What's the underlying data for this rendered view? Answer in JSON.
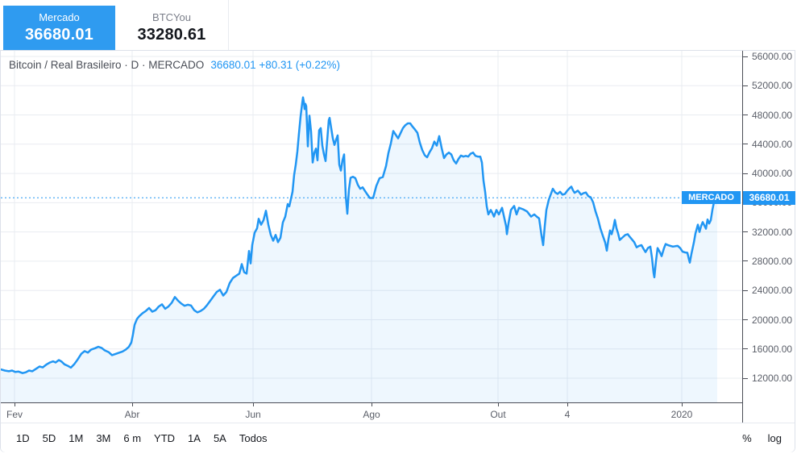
{
  "tabs": [
    {
      "label": "Mercado",
      "value": "36680.01",
      "active": true
    },
    {
      "label": "BTCYou",
      "value": "33280.61",
      "active": false
    }
  ],
  "header": {
    "title": "Bitcoin / Real Brasileiro · D · MERCADO",
    "quote": "36680.01 +80.31 (+0.22%)"
  },
  "price_label": {
    "badge": "MERCADO",
    "value": "36680.01"
  },
  "toolbar": {
    "ranges": [
      "1D",
      "5D",
      "1M",
      "3M",
      "6 m",
      "YTD",
      "1A",
      "5A",
      "Todos"
    ],
    "percent": "%",
    "log": "log"
  },
  "colors": {
    "accent": "#2196f3",
    "tab_active_bg": "#2f9bf0",
    "area_fill": "rgba(33,150,243,0.075)",
    "gridline": "#e9ecf1",
    "axis_line": "#4a4d56",
    "axis_text": "#5a5e68"
  },
  "chart_data": {
    "type": "area",
    "title": "Bitcoin / Real Brasileiro · D · MERCADO",
    "ylim": [
      12000,
      56000
    ],
    "grid": true,
    "current_price": 36680.01,
    "y_ticks": [
      56000,
      52000,
      48000,
      44000,
      40000,
      36000,
      32000,
      28000,
      24000,
      20000,
      16000,
      12000
    ],
    "y_tick_labels": [
      "56000.00",
      "52000.00",
      "48000.00",
      "44000.00",
      "40000.00",
      "36000.00",
      "32000.00",
      "28000.00",
      "24000.00",
      "20000.00",
      "16000.00",
      "12000.00"
    ],
    "x_ticks": [
      {
        "label": "Fev",
        "x": 17
      },
      {
        "label": "Abr",
        "x": 163
      },
      {
        "label": "Jun",
        "x": 313
      },
      {
        "label": "Ago",
        "x": 460
      },
      {
        "label": "Out",
        "x": 617
      },
      {
        "label": "4",
        "x": 703
      },
      {
        "label": "2020",
        "x": 845
      }
    ],
    "points": [
      [
        0,
        13200
      ],
      [
        5,
        13050
      ],
      [
        10,
        12950
      ],
      [
        14,
        13050
      ],
      [
        18,
        12850
      ],
      [
        22,
        12900
      ],
      [
        27,
        12700
      ],
      [
        31,
        12800
      ],
      [
        35,
        13050
      ],
      [
        39,
        12950
      ],
      [
        44,
        13300
      ],
      [
        48,
        13600
      ],
      [
        52,
        13480
      ],
      [
        57,
        13900
      ],
      [
        61,
        14150
      ],
      [
        65,
        14300
      ],
      [
        68,
        14150
      ],
      [
        72,
        14480
      ],
      [
        75,
        14300
      ],
      [
        79,
        13900
      ],
      [
        83,
        13700
      ],
      [
        87,
        13450
      ],
      [
        91,
        13900
      ],
      [
        95,
        14500
      ],
      [
        100,
        15350
      ],
      [
        104,
        15700
      ],
      [
        108,
        15500
      ],
      [
        112,
        15900
      ],
      [
        117,
        16100
      ],
      [
        121,
        16300
      ],
      [
        125,
        16150
      ],
      [
        129,
        15800
      ],
      [
        134,
        15550
      ],
      [
        138,
        15150
      ],
      [
        142,
        15300
      ],
      [
        147,
        15500
      ],
      [
        151,
        15650
      ],
      [
        155,
        15900
      ],
      [
        159,
        16300
      ],
      [
        162,
        16900
      ],
      [
        164,
        18000
      ],
      [
        166,
        19300
      ],
      [
        169,
        20100
      ],
      [
        172,
        20500
      ],
      [
        176,
        20900
      ],
      [
        180,
        21200
      ],
      [
        184,
        21600
      ],
      [
        188,
        21100
      ],
      [
        192,
        21300
      ],
      [
        196,
        21800
      ],
      [
        200,
        22100
      ],
      [
        204,
        21500
      ],
      [
        208,
        21800
      ],
      [
        212,
        22300
      ],
      [
        216,
        23100
      ],
      [
        220,
        22600
      ],
      [
        224,
        22200
      ],
      [
        228,
        21900
      ],
      [
        232,
        22050
      ],
      [
        236,
        21950
      ],
      [
        240,
        21300
      ],
      [
        244,
        21000
      ],
      [
        248,
        21200
      ],
      [
        252,
        21500
      ],
      [
        256,
        22000
      ],
      [
        260,
        22600
      ],
      [
        264,
        23200
      ],
      [
        268,
        23800
      ],
      [
        272,
        24100
      ],
      [
        276,
        23300
      ],
      [
        280,
        23800
      ],
      [
        284,
        25000
      ],
      [
        288,
        25700
      ],
      [
        292,
        26000
      ],
      [
        296,
        26300
      ],
      [
        299,
        27600
      ],
      [
        302,
        26500
      ],
      [
        305,
        26300
      ],
      [
        308,
        29400
      ],
      [
        310,
        27700
      ],
      [
        312,
        30200
      ],
      [
        315,
        31900
      ],
      [
        318,
        32500
      ],
      [
        320,
        33800
      ],
      [
        323,
        33000
      ],
      [
        326,
        33600
      ],
      [
        329,
        34900
      ],
      [
        332,
        33000
      ],
      [
        335,
        31600
      ],
      [
        338,
        30800
      ],
      [
        341,
        31600
      ],
      [
        344,
        30600
      ],
      [
        347,
        31200
      ],
      [
        350,
        33300
      ],
      [
        353,
        34100
      ],
      [
        356,
        35800
      ],
      [
        358,
        35500
      ],
      [
        360,
        36500
      ],
      [
        362,
        37500
      ],
      [
        364,
        39800
      ],
      [
        366,
        41200
      ],
      [
        368,
        43000
      ],
      [
        370,
        45500
      ],
      [
        372,
        47800
      ],
      [
        374,
        49600
      ],
      [
        375,
        50400
      ],
      [
        376,
        49800
      ],
      [
        377,
        48800
      ],
      [
        378,
        49500
      ],
      [
        379,
        49200
      ],
      [
        380,
        46500
      ],
      [
        381,
        43700
      ],
      [
        383,
        47900
      ],
      [
        385,
        45700
      ],
      [
        387,
        41500
      ],
      [
        389,
        42800
      ],
      [
        391,
        43400
      ],
      [
        393,
        41800
      ],
      [
        395,
        45900
      ],
      [
        397,
        46200
      ],
      [
        399,
        43800
      ],
      [
        401,
        42600
      ],
      [
        403,
        41700
      ],
      [
        405,
        44500
      ],
      [
        407,
        47300
      ],
      [
        408,
        47600
      ],
      [
        410,
        46200
      ],
      [
        412,
        44800
      ],
      [
        414,
        43900
      ],
      [
        416,
        44600
      ],
      [
        418,
        45200
      ],
      [
        420,
        41200
      ],
      [
        422,
        40400
      ],
      [
        424,
        41800
      ],
      [
        426,
        42600
      ],
      [
        428,
        37000
      ],
      [
        430,
        34500
      ],
      [
        432,
        37800
      ],
      [
        434,
        39400
      ],
      [
        437,
        39550
      ],
      [
        440,
        39350
      ],
      [
        443,
        38450
      ],
      [
        446,
        37900
      ],
      [
        449,
        38100
      ],
      [
        452,
        37600
      ],
      [
        455,
        37100
      ],
      [
        458,
        36650
      ],
      [
        462,
        36650
      ],
      [
        466,
        38300
      ],
      [
        470,
        39350
      ],
      [
        474,
        39500
      ],
      [
        478,
        41000
      ],
      [
        481,
        42800
      ],
      [
        484,
        44100
      ],
      [
        487,
        45800
      ],
      [
        490,
        45300
      ],
      [
        493,
        44800
      ],
      [
        496,
        45500
      ],
      [
        499,
        46200
      ],
      [
        502,
        46600
      ],
      [
        505,
        46850
      ],
      [
        508,
        46850
      ],
      [
        511,
        46400
      ],
      [
        514,
        46000
      ],
      [
        517,
        45550
      ],
      [
        520,
        44200
      ],
      [
        523,
        43200
      ],
      [
        526,
        42500
      ],
      [
        529,
        42200
      ],
      [
        532,
        42900
      ],
      [
        535,
        43450
      ],
      [
        538,
        44350
      ],
      [
        541,
        43800
      ],
      [
        544,
        45100
      ],
      [
        547,
        43500
      ],
      [
        550,
        42100
      ],
      [
        553,
        42600
      ],
      [
        556,
        42850
      ],
      [
        559,
        42600
      ],
      [
        562,
        41800
      ],
      [
        565,
        41350
      ],
      [
        568,
        42000
      ],
      [
        571,
        42450
      ],
      [
        574,
        42300
      ],
      [
        577,
        42400
      ],
      [
        580,
        42300
      ],
      [
        583,
        42700
      ],
      [
        586,
        42850
      ],
      [
        589,
        42400
      ],
      [
        592,
        42300
      ],
      [
        595,
        42300
      ],
      [
        597,
        41500
      ],
      [
        599,
        39000
      ],
      [
        601,
        37500
      ],
      [
        603,
        35500
      ],
      [
        605,
        34400
      ],
      [
        608,
        35000
      ],
      [
        610,
        34600
      ],
      [
        612,
        34100
      ],
      [
        615,
        35000
      ],
      [
        618,
        34400
      ],
      [
        622,
        35300
      ],
      [
        625,
        33800
      ],
      [
        627,
        32800
      ],
      [
        628,
        31700
      ],
      [
        630,
        33200
      ],
      [
        633,
        35000
      ],
      [
        637,
        35550
      ],
      [
        640,
        34400
      ],
      [
        643,
        35300
      ],
      [
        648,
        35100
      ],
      [
        653,
        34800
      ],
      [
        658,
        34100
      ],
      [
        662,
        34400
      ],
      [
        665,
        34100
      ],
      [
        668,
        33850
      ],
      [
        671,
        31500
      ],
      [
        673,
        30200
      ],
      [
        675,
        32800
      ],
      [
        677,
        35000
      ],
      [
        680,
        36400
      ],
      [
        683,
        37300
      ],
      [
        685,
        37900
      ],
      [
        688,
        37400
      ],
      [
        691,
        37200
      ],
      [
        694,
        37500
      ],
      [
        697,
        37100
      ],
      [
        700,
        37200
      ],
      [
        703,
        37650
      ],
      [
        706,
        38000
      ],
      [
        708,
        38200
      ],
      [
        710,
        37700
      ],
      [
        712,
        37350
      ],
      [
        714,
        37500
      ],
      [
        716,
        37650
      ],
      [
        718,
        37400
      ],
      [
        720,
        37100
      ],
      [
        723,
        37300
      ],
      [
        726,
        37400
      ],
      [
        729,
        36900
      ],
      [
        732,
        36750
      ],
      [
        735,
        36050
      ],
      [
        738,
        34800
      ],
      [
        741,
        33800
      ],
      [
        744,
        32500
      ],
      [
        747,
        31500
      ],
      [
        750,
        30550
      ],
      [
        752,
        29450
      ],
      [
        754,
        31000
      ],
      [
        756,
        32200
      ],
      [
        758,
        31700
      ],
      [
        760,
        32500
      ],
      [
        762,
        33650
      ],
      [
        764,
        32500
      ],
      [
        766,
        31800
      ],
      [
        768,
        30900
      ],
      [
        770,
        31100
      ],
      [
        772,
        31300
      ],
      [
        775,
        31600
      ],
      [
        778,
        31700
      ],
      [
        780,
        31400
      ],
      [
        783,
        31000
      ],
      [
        786,
        30600
      ],
      [
        789,
        29900
      ],
      [
        792,
        30100
      ],
      [
        795,
        30200
      ],
      [
        798,
        29600
      ],
      [
        800,
        29250
      ],
      [
        803,
        29800
      ],
      [
        806,
        30000
      ],
      [
        808,
        28500
      ],
      [
        810,
        26400
      ],
      [
        811,
        25800
      ],
      [
        813,
        28000
      ],
      [
        815,
        29800
      ],
      [
        818,
        29200
      ],
      [
        820,
        28700
      ],
      [
        823,
        29800
      ],
      [
        825,
        30350
      ],
      [
        828,
        30200
      ],
      [
        831,
        30100
      ],
      [
        834,
        30000
      ],
      [
        837,
        30050
      ],
      [
        840,
        30100
      ],
      [
        843,
        29800
      ],
      [
        846,
        29300
      ],
      [
        849,
        29200
      ],
      [
        852,
        29150
      ],
      [
        854,
        28200
      ],
      [
        855,
        27800
      ],
      [
        857,
        29000
      ],
      [
        860,
        30550
      ],
      [
        862,
        31800
      ],
      [
        865,
        33000
      ],
      [
        867,
        32000
      ],
      [
        869,
        32800
      ],
      [
        871,
        33350
      ],
      [
        873,
        32900
      ],
      [
        875,
        32450
      ],
      [
        877,
        33700
      ],
      [
        879,
        33150
      ],
      [
        881,
        33600
      ],
      [
        883,
        35000
      ],
      [
        885,
        36100
      ],
      [
        887,
        36500
      ],
      [
        889,
        36680
      ]
    ]
  }
}
